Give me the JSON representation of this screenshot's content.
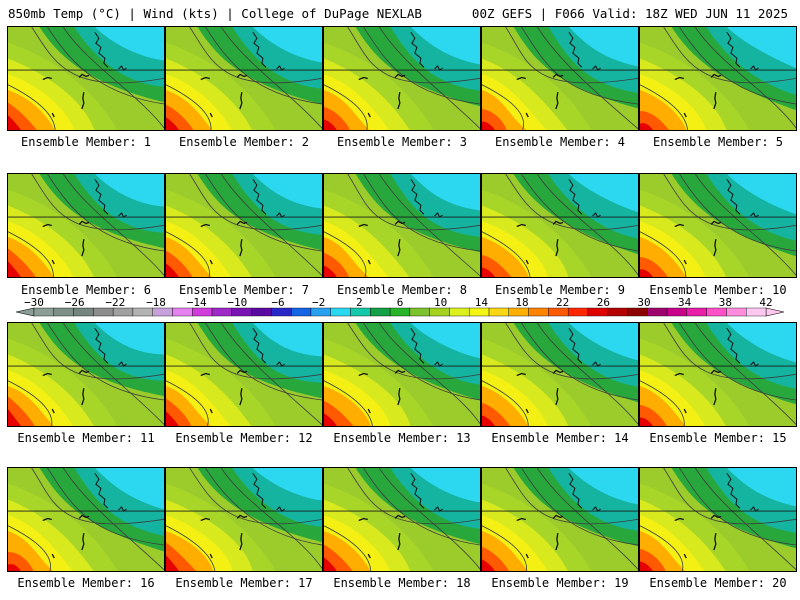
{
  "header": {
    "left": "850mb Temp (°C) | Wind (kts) | College of DuPage NEXLAB",
    "right": "00Z GEFS | F066 Valid: 18Z WED JUN 11 2025"
  },
  "caption_prefix": "Ensemble Member: ",
  "members": [
    1,
    2,
    3,
    4,
    5,
    6,
    7,
    8,
    9,
    10,
    11,
    12,
    13,
    14,
    15,
    16,
    17,
    18,
    19,
    20
  ],
  "colorbar": {
    "tick_labels": [
      "−30",
      "−26",
      "−22",
      "−18",
      "−14",
      "−10",
      "−6",
      "−2",
      "2",
      "6",
      "10",
      "14",
      "18",
      "22",
      "26",
      "30",
      "34",
      "38",
      "42"
    ],
    "colors": [
      "#8d9d96",
      "#7f8f88",
      "#75857e",
      "#8d8d8d",
      "#a0a0a0",
      "#b4b4b4",
      "#c8a0dc",
      "#e682f0",
      "#d23cdc",
      "#a028c8",
      "#7814b4",
      "#5a0aa0",
      "#2828c8",
      "#1464e6",
      "#28a0f0",
      "#2cd7f0",
      "#14c8aa",
      "#14a046",
      "#28b428",
      "#7dc32d",
      "#a5d21e",
      "#dcf01e",
      "#f5f514",
      "#fad714",
      "#ffaf00",
      "#ff8200",
      "#ff5a00",
      "#ff2800",
      "#e10000",
      "#b40000",
      "#8c0000",
      "#a0006e",
      "#c8008c",
      "#e61eaa",
      "#ff50c8",
      "#ff8cdc",
      "#ffc8f0"
    ]
  }
}
